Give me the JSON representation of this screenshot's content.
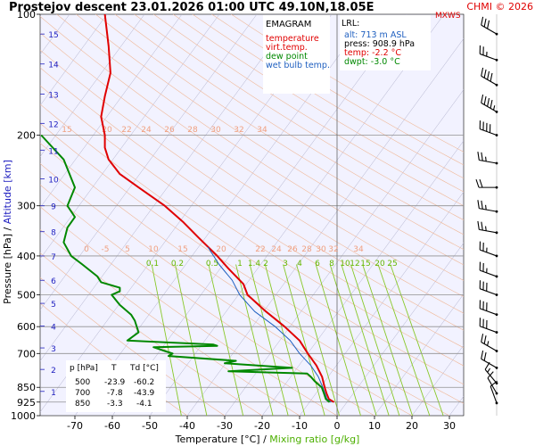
{
  "chart_data": {
    "type": "line",
    "title": "Prostejov   descent   23.01.2026 01:00 UTC  49.10N,18.05E",
    "watermark": "CHMI © 2026",
    "mxws_label": "MXWS",
    "xlabel": "Temperature [°C]",
    "xlabel_sep": " /  ",
    "xlabel2": "Mixing ratio [g/kg]",
    "ylabel": "Pressure [hPa]  /  Altitude [km]",
    "xlim": [
      -80,
      35
    ],
    "x_ticks": [
      -70,
      -60,
      -50,
      -40,
      -30,
      -20,
      -10,
      0,
      10,
      20,
      30
    ],
    "pressure_ticks": [
      100,
      200,
      300,
      400,
      500,
      600,
      700,
      850,
      925,
      1000
    ],
    "altitude_ticks": [
      {
        "label": "15",
        "p": 112
      },
      {
        "label": "14",
        "p": 133
      },
      {
        "label": "13",
        "p": 158
      },
      {
        "label": "12",
        "p": 187
      },
      {
        "label": "11",
        "p": 218
      },
      {
        "label": "10",
        "p": 257
      },
      {
        "label": "9",
        "p": 300
      },
      {
        "label": "8",
        "p": 348
      },
      {
        "label": "7",
        "p": 400
      },
      {
        "label": "6",
        "p": 460
      },
      {
        "label": "5",
        "p": 525
      },
      {
        "label": "4",
        "p": 598
      },
      {
        "label": "3",
        "p": 678
      },
      {
        "label": "2",
        "p": 767
      },
      {
        "label": "1",
        "p": 870
      }
    ],
    "theta_e_labels_top": [
      "15",
      "20",
      "22",
      "24",
      "26",
      "28",
      "30",
      "32",
      "34"
    ],
    "theta_e_labels_mid": [
      "0",
      "-5",
      "5",
      "10",
      "15",
      "20",
      "22",
      "24",
      "26",
      "28",
      "30",
      "32",
      "34"
    ],
    "mixing_ratio_labels": [
      "0.1",
      "0.2",
      "0.5",
      "1",
      "1.4",
      "2",
      "3",
      "4",
      "6",
      "8",
      "10",
      "12",
      "15",
      "20",
      "25"
    ],
    "mixing_ratios": [
      0.1,
      0.2,
      0.5,
      1,
      1.4,
      2,
      3,
      4,
      6,
      8,
      10,
      12,
      15,
      20,
      25
    ],
    "legend": {
      "title": "EMAGRAM",
      "items": [
        {
          "label": "temperature",
          "color": "#e00000"
        },
        {
          "label": "virt.temp.",
          "color": "#e00000"
        },
        {
          "label": "dew point",
          "color": "#008800"
        },
        {
          "label": "wet bulb temp.",
          "color": "#2060c0"
        }
      ]
    },
    "lrl": {
      "title": "LRL:",
      "alt": "alt: 713 m ASL",
      "press": "press: 908.9 hPa",
      "temp": "temp: -2.2 °C",
      "dwpt": "dwpt: -3.0 °C"
    },
    "table": {
      "header": [
        "p [hPa]",
        "T",
        "Td [°C]"
      ],
      "rows": [
        [
          "500",
          "-23.9",
          "-60.2"
        ],
        [
          "700",
          "-7.8",
          "-43.9"
        ],
        [
          "850",
          "-3.3",
          "-4.1"
        ]
      ]
    },
    "series": [
      {
        "name": "temperature",
        "color": "#e00000",
        "points": [
          [
            100,
            -62
          ],
          [
            120,
            -61
          ],
          [
            140,
            -60.5
          ],
          [
            160,
            -62
          ],
          [
            180,
            -63
          ],
          [
            200,
            -62
          ],
          [
            215,
            -62
          ],
          [
            230,
            -61
          ],
          [
            250,
            -58
          ],
          [
            270,
            -53
          ],
          [
            300,
            -46
          ],
          [
            330,
            -41
          ],
          [
            360,
            -37
          ],
          [
            400,
            -32
          ],
          [
            430,
            -29
          ],
          [
            470,
            -25
          ],
          [
            500,
            -23.9
          ],
          [
            550,
            -19
          ],
          [
            600,
            -14
          ],
          [
            650,
            -10
          ],
          [
            700,
            -7.8
          ],
          [
            750,
            -5.5
          ],
          [
            800,
            -4
          ],
          [
            850,
            -3.3
          ],
          [
            880,
            -2.8
          ],
          [
            908.9,
            -2.2
          ],
          [
            925,
            -0.8
          ]
        ]
      },
      {
        "name": "wet bulb temp.",
        "color": "#2060c0",
        "points": [
          [
            380,
            -34.5
          ],
          [
            420,
            -31.5
          ],
          [
            460,
            -28
          ],
          [
            500,
            -26
          ],
          [
            550,
            -22
          ],
          [
            600,
            -16.5
          ],
          [
            650,
            -12.5
          ],
          [
            700,
            -10
          ],
          [
            750,
            -7
          ],
          [
            800,
            -5
          ],
          [
            850,
            -3.8
          ],
          [
            908.9,
            -2.7
          ],
          [
            925,
            -1.6
          ]
        ]
      },
      {
        "name": "dew point",
        "color": "#008800",
        "points": [
          [
            200,
            -79
          ],
          [
            230,
            -73
          ],
          [
            270,
            -70
          ],
          [
            300,
            -72
          ],
          [
            320,
            -70
          ],
          [
            340,
            -72
          ],
          [
            370,
            -73
          ],
          [
            400,
            -71
          ],
          [
            420,
            -68
          ],
          [
            450,
            -64
          ],
          [
            465,
            -63
          ],
          [
            480,
            -58
          ],
          [
            490,
            -58
          ],
          [
            500,
            -60.2
          ],
          [
            530,
            -58
          ],
          [
            560,
            -55
          ],
          [
            580,
            -54
          ],
          [
            620,
            -53
          ],
          [
            650,
            -56
          ],
          [
            665,
            -33
          ],
          [
            670,
            -32
          ],
          [
            675,
            -49
          ],
          [
            690,
            -46
          ],
          [
            700,
            -43.9
          ],
          [
            710,
            -45
          ],
          [
            730,
            -27
          ],
          [
            740,
            -30
          ],
          [
            760,
            -12
          ],
          [
            775,
            -29
          ],
          [
            785,
            -8
          ],
          [
            800,
            -7
          ],
          [
            820,
            -6
          ],
          [
            850,
            -4.1
          ],
          [
            880,
            -3.5
          ],
          [
            908.9,
            -3.0
          ],
          [
            925,
            -2.0
          ]
        ]
      }
    ],
    "wind_barbs": [
      {
        "p": 112,
        "dir": 300,
        "spd": 30
      },
      {
        "p": 130,
        "dir": 290,
        "spd": 25
      },
      {
        "p": 150,
        "dir": 300,
        "spd": 40
      },
      {
        "p": 175,
        "dir": 300,
        "spd": 45
      },
      {
        "p": 200,
        "dir": 290,
        "spd": 40
      },
      {
        "p": 235,
        "dir": 280,
        "spd": 25
      },
      {
        "p": 270,
        "dir": 270,
        "spd": 20
      },
      {
        "p": 310,
        "dir": 280,
        "spd": 25
      },
      {
        "p": 350,
        "dir": 280,
        "spd": 25
      },
      {
        "p": 400,
        "dir": 290,
        "spd": 25
      },
      {
        "p": 450,
        "dir": 290,
        "spd": 25
      },
      {
        "p": 500,
        "dir": 290,
        "spd": 30
      },
      {
        "p": 560,
        "dir": 290,
        "spd": 30
      },
      {
        "p": 620,
        "dir": 290,
        "spd": 30
      },
      {
        "p": 690,
        "dir": 300,
        "spd": 25
      },
      {
        "p": 760,
        "dir": 300,
        "spd": 20
      },
      {
        "p": 830,
        "dir": 320,
        "spd": 15
      },
      {
        "p": 880,
        "dir": 330,
        "spd": 10
      },
      {
        "p": 930,
        "dir": 340,
        "spd": 10
      }
    ]
  }
}
